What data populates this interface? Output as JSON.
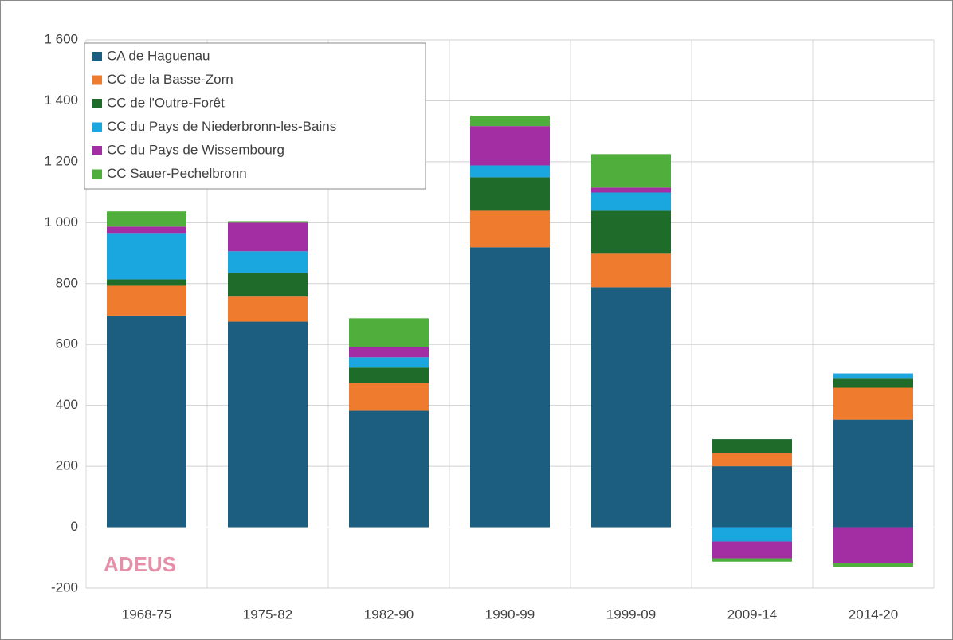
{
  "chart_data": {
    "type": "stacked_bar",
    "categories": [
      "1968-75",
      "1975-82",
      "1982-90",
      "1990-99",
      "1999-09",
      "2009-14",
      "2014-20"
    ],
    "series": [
      {
        "name": "CA de Haguenau",
        "color": "#1b5e80",
        "values": [
          695,
          675,
          382,
          919,
          788,
          200,
          353
        ]
      },
      {
        "name": "CC de la Basse-Zorn",
        "color": "#ef7b2e",
        "values": [
          98,
          82,
          92,
          120,
          110,
          44,
          105
        ]
      },
      {
        "name": "CC de l'Outre-Forêt",
        "color": "#1e6b2a",
        "values": [
          21,
          78,
          50,
          110,
          141,
          45,
          32
        ]
      },
      {
        "name": "CC du Pays de Niederbronn-les-Bains",
        "color": "#1aa6df",
        "values": [
          152,
          71,
          34,
          39,
          60,
          -47,
          15
        ]
      },
      {
        "name": "CC du Pays de Wissembourg",
        "color": "#a32ea3",
        "values": [
          21,
          94,
          34,
          129,
          16,
          -55,
          -118
        ]
      },
      {
        "name": "CC Sauer-Pechelbronn",
        "color": "#4fae3c",
        "values": [
          50,
          5,
          94,
          34,
          110,
          -11,
          -13
        ]
      }
    ],
    "ylim": [
      -200,
      1600
    ],
    "yticks": [
      -200,
      0,
      200,
      400,
      600,
      800,
      {
        "value": 1000,
        "label": "1 000"
      },
      {
        "value": 1200,
        "label": "1 200"
      },
      {
        "value": 1400,
        "label": "1 400"
      },
      {
        "value": 1600,
        "label": "1 600"
      }
    ],
    "grid": true,
    "legend": "top-left",
    "logo": "ADEUS"
  }
}
